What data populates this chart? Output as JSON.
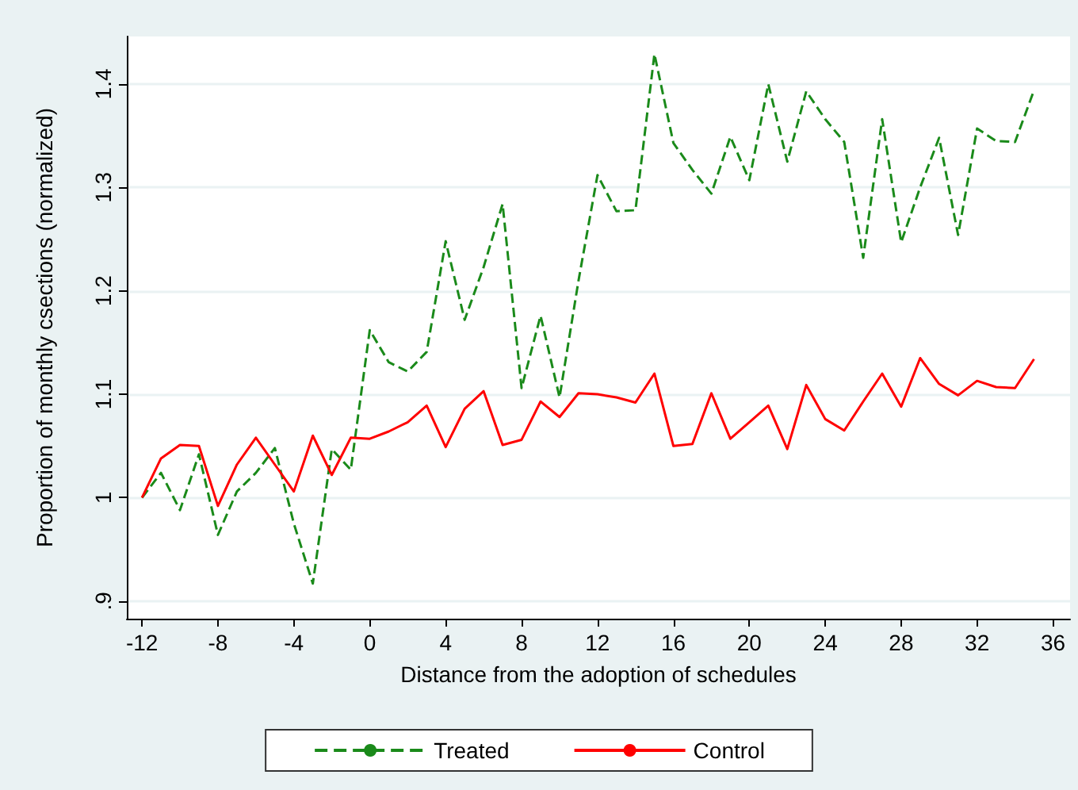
{
  "chart_data": {
    "type": "line",
    "xlabel": "Distance from the adoption of schedules",
    "ylabel": "Proportion of monthly csections (normalized)",
    "x": [
      -12,
      -11,
      -10,
      -9,
      -8,
      -7,
      -6,
      -5,
      -4,
      -3,
      -2,
      -1,
      0,
      1,
      2,
      3,
      4,
      5,
      6,
      7,
      8,
      9,
      10,
      11,
      12,
      13,
      14,
      15,
      16,
      17,
      18,
      19,
      20,
      21,
      22,
      23,
      24,
      25,
      26,
      27,
      28,
      29,
      30,
      31,
      32,
      33,
      34,
      35
    ],
    "series": [
      {
        "name": "Treated",
        "color": "#1a8a1a",
        "line_style": "dashed",
        "values": [
          1.0,
          1.024,
          0.988,
          1.042,
          0.964,
          1.006,
          1.024,
          1.048,
          0.975,
          0.917,
          1.047,
          1.027,
          1.162,
          1.131,
          1.122,
          1.141,
          1.248,
          1.172,
          1.223,
          1.284,
          1.106,
          1.176,
          1.097,
          1.21,
          1.312,
          1.277,
          1.278,
          1.429,
          1.343,
          1.317,
          1.294,
          1.349,
          1.307,
          1.4,
          1.325,
          1.393,
          1.366,
          1.344,
          1.232,
          1.366,
          1.247,
          1.3,
          1.348,
          1.254,
          1.357,
          1.345,
          1.344,
          1.394
        ]
      },
      {
        "name": "Control",
        "color": "#ff0000",
        "line_style": "solid",
        "values": [
          1.0,
          1.038,
          1.051,
          1.05,
          0.992,
          1.032,
          1.058,
          1.032,
          1.006,
          1.06,
          1.022,
          1.058,
          1.057,
          1.064,
          1.073,
          1.089,
          1.049,
          1.086,
          1.103,
          1.051,
          1.056,
          1.093,
          1.078,
          1.101,
          1.1,
          1.097,
          1.092,
          1.12,
          1.05,
          1.052,
          1.101,
          1.057,
          1.073,
          1.089,
          1.047,
          1.109,
          1.076,
          1.065,
          1.093,
          1.12,
          1.088,
          1.135,
          1.11,
          1.099,
          1.113,
          1.107,
          1.106,
          1.134
        ]
      }
    ],
    "xlim": [
      -12.8,
      36.9
    ],
    "xticks": [
      -12,
      -8,
      -4,
      0,
      4,
      8,
      12,
      16,
      20,
      24,
      28,
      32,
      36
    ],
    "ylim": [
      0.883,
      1.446
    ],
    "yticks": [
      {
        "value": 0.9,
        "label": ".9"
      },
      1,
      1.1,
      1.2,
      1.3,
      1.4
    ],
    "grid": "y",
    "legend": "bottom",
    "marker": "none"
  }
}
